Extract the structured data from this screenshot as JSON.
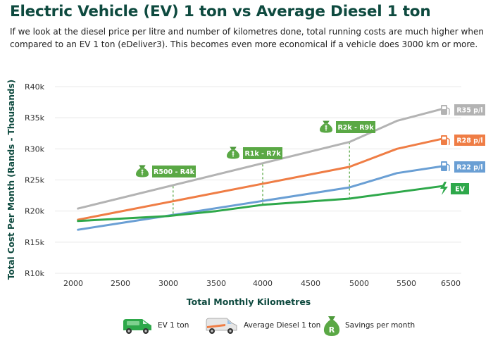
{
  "header": {
    "title": "Electric Vehicle (EV) 1 ton vs Average Diesel 1 ton",
    "subtitle": "If we look at the diesel price per litre and number of kilometres done, total running costs are much higher when compared to an EV 1 ton (eDeliver3). This becomes even more economical if a vehicle does 3000 km or more."
  },
  "colors": {
    "title": "#0e4a3f",
    "grey": "#b3b3b3",
    "orange": "#ef7d45",
    "blue": "#6a9fd4",
    "green": "#2ea84a",
    "savings": "#5aa845",
    "gridline": "#e8e8e8"
  },
  "chart_data": {
    "type": "line",
    "title": "Electric Vehicle (EV) 1 ton vs Average Diesel 1 ton",
    "xlabel": "Total Monthly Kilometres",
    "ylabel": "Total Cost Per Month (Rands - Thousands)",
    "xlim": [
      2000,
      6500
    ],
    "ylim": [
      10,
      40
    ],
    "x_ticks": [
      2000,
      2500,
      3000,
      3500,
      4000,
      4500,
      5000,
      5500,
      6500
    ],
    "x_tick_labels": [
      "2000",
      "2500",
      "3000",
      "3500",
      "4000",
      "4500",
      "5000",
      "5500",
      "6500"
    ],
    "y_ticks": [
      10,
      15,
      20,
      25,
      30,
      35,
      40
    ],
    "y_tick_labels": [
      "R10k",
      "R15k",
      "R20k",
      "R25k",
      "R30k",
      "R35k",
      "R40k"
    ],
    "series": [
      {
        "name": "Diesel R35 p/l",
        "end_label": "R35 p/l",
        "color": "#b3b3b3",
        "icon": "fuel-pump-icon",
        "x": [
          2050,
          4900,
          5400,
          6300
        ],
        "y": [
          20.4,
          31.1,
          34.5,
          36.4
        ]
      },
      {
        "name": "Diesel R28 p/l",
        "end_label": "R28 p/l",
        "color": "#ef7d45",
        "icon": "fuel-pump-icon",
        "x": [
          2050,
          4900,
          5400,
          6300
        ],
        "y": [
          18.6,
          27.1,
          30.0,
          31.6
        ]
      },
      {
        "name": "Diesel R22 p/l",
        "end_label": "R22 p/l",
        "color": "#6a9fd4",
        "icon": "fuel-pump-icon",
        "x": [
          2050,
          4900,
          5400,
          6300
        ],
        "y": [
          17.0,
          23.8,
          26.1,
          27.2
        ]
      },
      {
        "name": "EV",
        "end_label": "EV",
        "color": "#2ea84a",
        "icon": "lightning-bolt-icon",
        "x": [
          2050,
          3000,
          3500,
          4000,
          4900,
          6300
        ],
        "y": [
          18.4,
          19.2,
          20.0,
          21.0,
          22.0,
          24.0
        ]
      }
    ],
    "annotations": [
      {
        "label": "R500 - R4k",
        "x": 3050,
        "y_low": 19.2,
        "y_high": 24.0
      },
      {
        "label": "R1k - R7k",
        "x": 4000,
        "y_low": 21.0,
        "y_high": 27.5
      },
      {
        "label": "R2k - R9k",
        "x": 4900,
        "y_low": 22.0,
        "y_high": 31.1
      }
    ]
  },
  "legend": [
    {
      "label": "EV 1 ton",
      "icon": "ev-van-icon"
    },
    {
      "label": "Average Diesel 1 ton",
      "icon": "diesel-van-icon"
    },
    {
      "label": "Savings per month",
      "icon": "money-bag-icon"
    }
  ]
}
